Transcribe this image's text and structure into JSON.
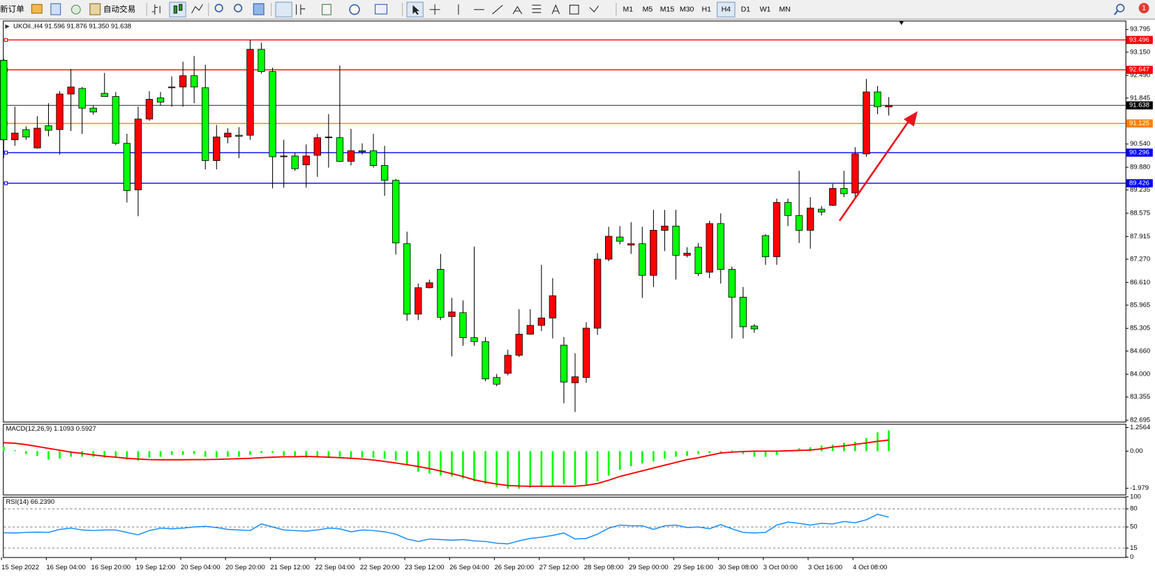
{
  "toolbar": {
    "new_order": "新订单",
    "auto_trading": "自动交易",
    "timeframes": [
      "M1",
      "M5",
      "M15",
      "M30",
      "H1",
      "H4",
      "D1",
      "W1",
      "MN"
    ],
    "active_timeframe": "H4",
    "notifications": 1
  },
  "chart_data": [
    {
      "type": "candlestick",
      "title": "UKOil.,H4  91.596 91.876 91.350 91.638",
      "up_color": "#ff0000",
      "down_color": "#00ff00",
      "categories": [
        "15 Sep 2022",
        null,
        null,
        null,
        "16 Sep 04:00",
        null,
        null,
        null,
        "16 Sep 20:00",
        null,
        null,
        null,
        "19 Sep 12:00",
        null,
        null,
        null,
        "20 Sep 04:00",
        null,
        null,
        null,
        "20 Sep 20:00",
        null,
        null,
        null,
        "21 Sep 12:00",
        null,
        null,
        null,
        "22 Sep 04:00",
        null,
        null,
        null,
        "22 Sep 20:00",
        null,
        null,
        null,
        "23 Sep 12:00",
        null,
        null,
        null,
        "26 Sep 04:00",
        null,
        null,
        null,
        "26 Sep 20:00",
        null,
        null,
        null,
        "27 Sep 12:00",
        null,
        null,
        null,
        "28 Sep 08:00",
        null,
        null,
        null,
        "29 Sep 00:00",
        null,
        null,
        null,
        "29 Sep 16:00",
        null,
        null,
        null,
        "30 Sep 08:00",
        null,
        null,
        null,
        "3 Oct 00:00",
        null,
        null,
        null,
        "3 Oct 16:00",
        null,
        null,
        null,
        "4 Oct 08:00",
        null,
        null,
        null
      ],
      "open": [
        92.92,
        90.66,
        90.95,
        90.43,
        91.06,
        90.95,
        91.96,
        92.12,
        91.56,
        91.98,
        91.89,
        90.56,
        89.24,
        91.25,
        91.85,
        92.14,
        92.16,
        92.48,
        92.14,
        90.07,
        90.74,
        90.79,
        90.79,
        93.23,
        92.6,
        90.18,
        90.2,
        89.95,
        90.22,
        90.72,
        90.72,
        90.05,
        90.35,
        90.35,
        89.93,
        89.51,
        87.71,
        85.71,
        86.46,
        86.98,
        85.64,
        85.75,
        85.04,
        84.93,
        83.91,
        84.03,
        84.54,
        85.14,
        85.39,
        85.6,
        84.83,
        83.76,
        83.91,
        85.31,
        87.27,
        87.9,
        87.67,
        87.71,
        86.81,
        88.09,
        88.21,
        87.38,
        87.61,
        86.9,
        88.28,
        86.98,
        86.19,
        85.37,
        87.94,
        87.34,
        88.88,
        88.51,
        88.09,
        88.69,
        88.8,
        89.28,
        89.15,
        90.26,
        92.02,
        91.596
      ],
      "high": [
        92.96,
        91.6,
        91.04,
        91.33,
        91.7,
        92.04,
        92.67,
        92.16,
        91.64,
        92.56,
        92.02,
        90.83,
        91.6,
        92.04,
        92.02,
        92.46,
        92.88,
        93.04,
        92.79,
        91.08,
        90.99,
        91.02,
        93.5,
        93.42,
        92.71,
        90.66,
        90.3,
        90.53,
        90.83,
        91.39,
        92.77,
        90.97,
        90.56,
        90.83,
        90.49,
        89.55,
        88.05,
        86.58,
        86.69,
        87.42,
        86.17,
        86.1,
        87.63,
        85.06,
        84.01,
        84.7,
        85.85,
        85.85,
        87.11,
        86.73,
        85.06,
        84.6,
        85.48,
        87.44,
        88.19,
        88.21,
        88.32,
        88.19,
        88.67,
        88.67,
        88.67,
        87.61,
        87.73,
        88.36,
        88.57,
        87.06,
        86.48,
        85.43,
        87.98,
        88.99,
        88.99,
        89.78,
        89.03,
        88.78,
        89.41,
        89.78,
        90.45,
        92.39,
        92.19,
        91.876
      ],
      "low": [
        90.14,
        90.49,
        90.66,
        90.41,
        90.76,
        90.24,
        90.91,
        90.83,
        91.37,
        91.89,
        90.51,
        88.88,
        88.49,
        91.2,
        91.64,
        91.6,
        91.6,
        91.7,
        89.82,
        89.82,
        90.56,
        90.14,
        90.66,
        92.54,
        89.28,
        89.3,
        89.78,
        89.3,
        89.61,
        89.87,
        90.03,
        89.93,
        90.24,
        89.87,
        89.07,
        87.4,
        85.52,
        85.54,
        86.44,
        85.54,
        84.51,
        84.81,
        84.81,
        83.8,
        83.66,
        83.97,
        84.49,
        85.12,
        85.23,
        85.02,
        83.18,
        82.93,
        83.76,
        85.12,
        87.21,
        87.69,
        87.42,
        86.17,
        86.48,
        87.5,
        86.69,
        87.32,
        86.79,
        86.73,
        86.58,
        85.02,
        85.02,
        85.18,
        87.11,
        87.11,
        88.21,
        87.73,
        87.57,
        88.51,
        88.78,
        89.03,
        88.99,
        90.18,
        91.39,
        91.35
      ],
      "close": [
        90.66,
        90.85,
        90.74,
        90.99,
        90.93,
        91.96,
        92.16,
        91.56,
        91.45,
        91.89,
        90.56,
        89.22,
        91.25,
        91.81,
        91.73,
        92.16,
        92.48,
        92.16,
        90.07,
        90.74,
        90.85,
        90.76,
        93.23,
        92.6,
        90.18,
        90.2,
        89.84,
        90.2,
        90.72,
        90.74,
        90.05,
        90.35,
        90.32,
        89.93,
        89.51,
        87.73,
        85.71,
        86.46,
        86.6,
        85.62,
        85.77,
        85.04,
        84.93,
        83.87,
        83.72,
        84.54,
        85.14,
        85.39,
        85.6,
        86.23,
        83.78,
        83.93,
        85.31,
        87.27,
        87.92,
        87.78,
        87.71,
        86.81,
        88.09,
        88.21,
        87.38,
        87.44,
        86.86,
        88.28,
        86.98,
        86.19,
        85.35,
        85.29,
        87.34,
        88.88,
        88.51,
        88.09,
        88.72,
        88.61,
        89.28,
        89.13,
        90.26,
        92.02,
        91.6,
        91.638
      ],
      "ylim": [
        82.654,
        94.004
      ],
      "yticks": [
        93.795,
        {
          "value": 93.15,
          "label": "93.150"
        },
        {
          "value": 92.49,
          "label": "92.490"
        },
        91.845,
        {
          "value": 90.54,
          "label": "90.540"
        },
        {
          "value": 89.88,
          "label": "89.880"
        },
        89.235,
        88.575,
        87.915,
        {
          "value": 87.27,
          "label": "87.270"
        },
        {
          "value": 86.61,
          "label": "86.610"
        },
        85.965,
        85.305,
        {
          "value": 84.66,
          "label": "84.660"
        },
        {
          "value": 84,
          "label": "84.000"
        },
        83.355,
        82.695
      ],
      "price_lines": [
        {
          "value": 93.496,
          "color": "#ff0000"
        },
        {
          "value": 92.647,
          "color": "#ff0000"
        },
        {
          "value": 91.125,
          "color": "#ff8000"
        },
        {
          "value": 90.296,
          "color": "#0000ff"
        },
        {
          "value": 89.426,
          "color": "#0000ff"
        }
      ],
      "last_price": {
        "value": 91.638,
        "color": "#000000"
      }
    },
    {
      "type": "macd",
      "title": "MACD(12,26,9) 1.1093 0.5927",
      "series": [
        {
          "style": "histogram",
          "color": "#00ff00",
          "values": [
            0.25,
            0.05,
            -0.15,
            -0.25,
            -0.45,
            -0.4,
            -0.3,
            -0.3,
            -0.3,
            -0.35,
            -0.3,
            -0.45,
            -0.5,
            -0.35,
            -0.3,
            -0.2,
            -0.2,
            -0.15,
            -0.3,
            -0.35,
            -0.3,
            -0.3,
            -0.2,
            -0.1,
            -0.1,
            -0.25,
            -0.3,
            -0.35,
            -0.35,
            -0.3,
            -0.3,
            -0.35,
            -0.35,
            -0.35,
            -0.4,
            -0.5,
            -0.75,
            -1.1,
            -1.2,
            -1.3,
            -1.35,
            -1.45,
            -1.6,
            -1.75,
            -1.9,
            -2.0,
            -2.0,
            -1.95,
            -1.9,
            -1.85,
            -1.75,
            -1.8,
            -1.8,
            -1.6,
            -1.3,
            -1.0,
            -0.8,
            -0.65,
            -0.55,
            -0.4,
            -0.3,
            -0.25,
            -0.15,
            -0.1,
            -0.05,
            0.0,
            -0.15,
            -0.3,
            -0.3,
            -0.2,
            0.05,
            0.15,
            0.2,
            0.3,
            0.35,
            0.45,
            0.5,
            0.7,
            1.0,
            1.1093
          ]
        },
        {
          "style": "line",
          "color": "#ff0000",
          "values": [
            0.45,
            0.42,
            0.35,
            0.25,
            0.15,
            0.05,
            -0.05,
            -0.12,
            -0.2,
            -0.27,
            -0.32,
            -0.38,
            -0.42,
            -0.45,
            -0.46,
            -0.46,
            -0.46,
            -0.45,
            -0.45,
            -0.44,
            -0.42,
            -0.4,
            -0.38,
            -0.35,
            -0.32,
            -0.3,
            -0.3,
            -0.28,
            -0.3,
            -0.32,
            -0.35,
            -0.38,
            -0.42,
            -0.47,
            -0.55,
            -0.63,
            -0.72,
            -0.82,
            -0.93,
            -1.06,
            -1.2,
            -1.35,
            -1.53,
            -1.65,
            -1.75,
            -1.83,
            -1.86,
            -1.87,
            -1.87,
            -1.87,
            -1.87,
            -1.87,
            -1.82,
            -1.72,
            -1.55,
            -1.35,
            -1.2,
            -1.05,
            -0.9,
            -0.75,
            -0.6,
            -0.45,
            -0.35,
            -0.22,
            -0.1,
            -0.05,
            -0.02,
            0.0,
            0.0,
            0.0,
            0.02,
            0.04,
            0.06,
            0.12,
            0.22,
            0.28,
            0.36,
            0.44,
            0.52,
            0.5927
          ]
        }
      ],
      "ylim": [
        -2.314,
        1.451
      ],
      "yticks": [
        1.2564,
        {
          "value": 0,
          "label": "0.00"
        },
        -1.979
      ]
    },
    {
      "type": "line",
      "title": "RSI(14) 66.2390",
      "series": [
        {
          "color": "#1e90ff",
          "values": [
            40.5,
            40,
            41,
            41.5,
            41,
            46,
            48,
            45,
            44,
            45,
            45,
            41,
            37,
            44,
            48,
            47,
            48,
            50,
            51,
            49,
            46,
            45,
            44,
            55,
            50,
            45,
            44,
            43,
            45,
            48,
            47,
            42,
            45,
            44,
            42,
            38,
            30,
            26,
            30,
            29,
            28,
            29,
            27,
            26,
            23,
            22,
            27,
            31,
            33,
            36,
            40,
            30,
            31,
            38,
            48,
            53,
            52,
            52,
            46,
            52,
            53,
            49,
            50,
            47,
            54,
            47,
            41,
            40,
            41,
            53,
            58,
            56,
            53,
            56,
            55,
            59,
            57,
            62,
            71,
            66.239
          ]
        }
      ],
      "ylim": [
        0,
        100
      ],
      "yticks": [
        100,
        80,
        50,
        15,
        0
      ],
      "levels": [
        80,
        50,
        15
      ]
    }
  ]
}
